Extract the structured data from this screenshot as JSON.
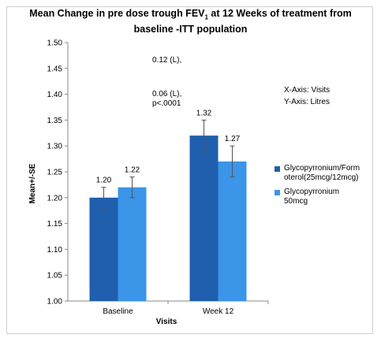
{
  "chart_data": {
    "type": "bar",
    "title_main": "Mean Change in pre dose trough FEV",
    "title_sub": "1",
    "title_rest": " at 12 Weeks of treatment from",
    "title_line2": "baseline -ITT population",
    "xlabel": "Visits",
    "ylabel": "Mean+/-SE",
    "categories": [
      "Baseline",
      "Week 12"
    ],
    "ylim": [
      1.0,
      1.5
    ],
    "yticks": [
      "1.00",
      "1.05",
      "1.10",
      "1.15",
      "1.20",
      "1.25",
      "1.30",
      "1.35",
      "1.40",
      "1.45",
      "1.50"
    ],
    "grid": false,
    "legend_position": "right",
    "series": [
      {
        "name": "Glycopyrronium/Formoterol(25mcg/12mcg)",
        "legend_line1": "Glycopyrronium/Form",
        "legend_line2": "oterol(25mcg/12mcg)",
        "color": "#1f5fad",
        "values": [
          1.2,
          1.32
        ],
        "labels": [
          "1.20",
          "1.32"
        ],
        "se": [
          0.02,
          0.03
        ]
      },
      {
        "name": "Glycopyrronium 50mcg",
        "legend_line1": "Glycopyrronium",
        "legend_line2": "50mcg",
        "color": "#3b95e8",
        "values": [
          1.22,
          1.27
        ],
        "labels": [
          "1.22",
          "1.27"
        ],
        "se": [
          0.02,
          0.03
        ]
      }
    ],
    "annotations": {
      "diff1": "0.12 (L),",
      "diff2": "0.06 (L),",
      "pvalue": "p<.0001",
      "xaxis_note": "X-Axis: Visits",
      "yaxis_note": "Y-Axis: Litres"
    }
  }
}
